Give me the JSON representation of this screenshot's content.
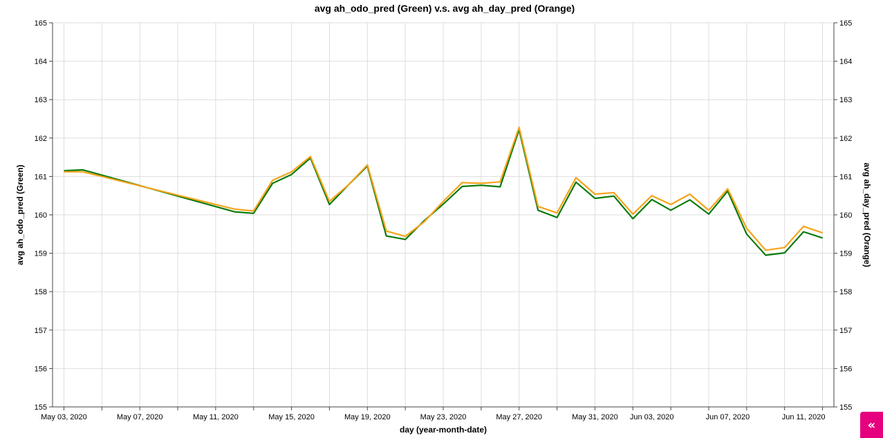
{
  "chart_data": {
    "type": "line",
    "title": "avg ah_odo_pred (Green) v.s. avg ah_day_pred (Orange)",
    "xlabel": "day (year-month-date)",
    "ylabel_left": "avg ah_odo_pred (Green)",
    "ylabel_right": "avg ah_day_pred (Orange)",
    "ylim": [
      155,
      165
    ],
    "yticks": [
      "155",
      "156",
      "157",
      "158",
      "159",
      "160",
      "161",
      "162",
      "163",
      "164",
      "165"
    ],
    "xlim": [
      "2020-05-03",
      "2020-06-12"
    ],
    "xticks": [
      {
        "date": "2020-05-03",
        "label": "May 03, 2020"
      },
      {
        "date": "2020-05-07",
        "label": "May 07, 2020"
      },
      {
        "date": "2020-05-11",
        "label": "May 11, 2020"
      },
      {
        "date": "2020-05-15",
        "label": "May 15, 2020"
      },
      {
        "date": "2020-05-19",
        "label": "May 19, 2020"
      },
      {
        "date": "2020-05-23",
        "label": "May 23, 2020"
      },
      {
        "date": "2020-05-27",
        "label": "May 27, 2020"
      },
      {
        "date": "2020-05-31",
        "label": "May 31, 2020"
      },
      {
        "date": "2020-06-03",
        "label": "Jun 03, 2020"
      },
      {
        "date": "2020-06-07",
        "label": "Jun 07, 2020"
      },
      {
        "date": "2020-06-11",
        "label": "Jun 11, 2020"
      }
    ],
    "grid": true,
    "series": [
      {
        "color": "#0a7a0a",
        "points": [
          [
            "2020-05-03",
            161.15
          ],
          [
            "2020-05-04",
            161.17
          ],
          [
            "2020-05-12",
            160.08
          ],
          [
            "2020-05-13",
            160.04
          ],
          [
            "2020-05-14",
            160.82
          ],
          [
            "2020-05-15",
            161.05
          ],
          [
            "2020-05-16",
            161.48
          ],
          [
            "2020-05-17",
            160.27
          ],
          [
            "2020-05-18",
            160.78
          ],
          [
            "2020-05-19",
            161.27
          ],
          [
            "2020-05-20",
            159.45
          ],
          [
            "2020-05-21",
            159.36
          ],
          [
            "2020-05-22",
            159.85
          ],
          [
            "2020-05-23",
            160.28
          ],
          [
            "2020-05-24",
            160.74
          ],
          [
            "2020-05-25",
            160.77
          ],
          [
            "2020-05-26",
            160.73
          ],
          [
            "2020-05-27",
            162.22
          ],
          [
            "2020-05-28",
            160.12
          ],
          [
            "2020-05-29",
            159.93
          ],
          [
            "2020-05-30",
            160.85
          ],
          [
            "2020-05-31",
            160.43
          ],
          [
            "2020-06-01",
            160.49
          ],
          [
            "2020-06-02",
            159.9
          ],
          [
            "2020-06-03",
            160.4
          ],
          [
            "2020-06-04",
            160.12
          ],
          [
            "2020-06-05",
            160.39
          ],
          [
            "2020-06-06",
            160.02
          ],
          [
            "2020-06-07",
            160.62
          ],
          [
            "2020-06-08",
            159.5
          ],
          [
            "2020-06-09",
            158.95
          ],
          [
            "2020-06-10",
            159.01
          ],
          [
            "2020-06-11",
            159.56
          ],
          [
            "2020-06-12",
            159.4
          ],
          [
            "2020-06-13",
            159.38
          ]
        ]
      },
      {
        "color": "#f5a31a",
        "points": [
          [
            "2020-05-03",
            161.12
          ],
          [
            "2020-05-04",
            161.12
          ],
          [
            "2020-05-12",
            160.15
          ],
          [
            "2020-05-13",
            160.1
          ],
          [
            "2020-05-14",
            160.9
          ],
          [
            "2020-05-15",
            161.12
          ],
          [
            "2020-05-16",
            161.52
          ],
          [
            "2020-05-17",
            160.35
          ],
          [
            "2020-05-18",
            160.78
          ],
          [
            "2020-05-19",
            161.3
          ],
          [
            "2020-05-20",
            159.58
          ],
          [
            "2020-05-21",
            159.44
          ],
          [
            "2020-05-22",
            159.82
          ],
          [
            "2020-05-23",
            160.35
          ],
          [
            "2020-05-24",
            160.84
          ],
          [
            "2020-05-25",
            160.82
          ],
          [
            "2020-05-26",
            160.86
          ],
          [
            "2020-05-27",
            162.28
          ],
          [
            "2020-05-28",
            160.22
          ],
          [
            "2020-05-29",
            160.05
          ],
          [
            "2020-05-30",
            160.97
          ],
          [
            "2020-05-31",
            160.54
          ],
          [
            "2020-06-01",
            160.58
          ],
          [
            "2020-06-02",
            160.02
          ],
          [
            "2020-06-03",
            160.5
          ],
          [
            "2020-06-04",
            160.27
          ],
          [
            "2020-06-05",
            160.54
          ],
          [
            "2020-06-06",
            160.12
          ],
          [
            "2020-06-07",
            160.68
          ],
          [
            "2020-06-08",
            159.65
          ],
          [
            "2020-06-09",
            159.08
          ],
          [
            "2020-06-10",
            159.15
          ],
          [
            "2020-06-11",
            159.7
          ],
          [
            "2020-06-12",
            159.53
          ],
          [
            "2020-06-13",
            159.52
          ]
        ]
      }
    ]
  },
  "ui": {
    "toggle_label": "«"
  }
}
